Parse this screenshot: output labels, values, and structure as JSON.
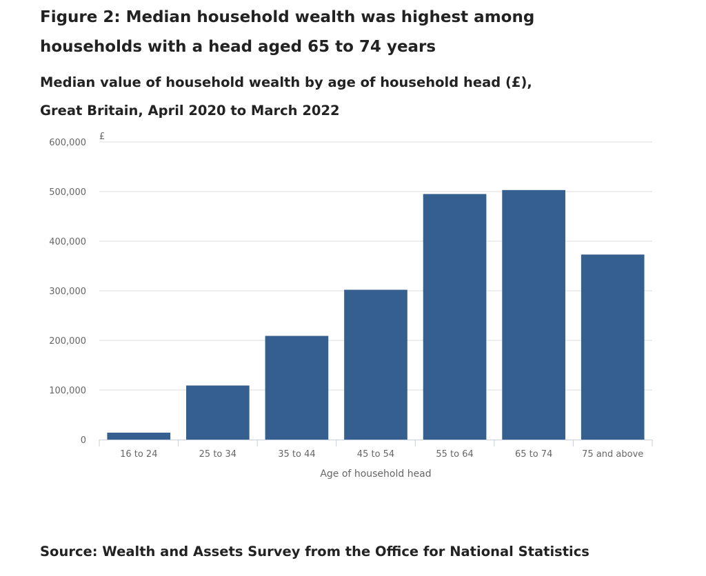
{
  "figure": {
    "title": "Figure 2: Median household wealth was highest among households with a head aged 65 to 74 years",
    "subtitle": "Median value of household wealth by age of household head (£), Great Britain, April 2020 to March 2022",
    "source": "Source: Wealth and Assets Survey from the Office for National Statistics"
  },
  "chart_data": {
    "type": "bar",
    "categories": [
      "16 to 24",
      "25 to 34",
      "35 to 44",
      "45 to 54",
      "55 to 64",
      "65 to 74",
      "75 and above"
    ],
    "series": [
      {
        "values": [
          14000,
          109000,
          209000,
          302000,
          495000,
          503000,
          373000
        ]
      }
    ],
    "xlabel": "Age of household head",
    "ylabel": "£",
    "ylim": [
      0,
      600000
    ],
    "yticks": [
      0,
      100000,
      200000,
      300000,
      400000,
      500000,
      600000
    ],
    "ytick_labels": [
      "0",
      "100,000",
      "200,000",
      "300,000",
      "400,000",
      "500,000",
      "600,000"
    ],
    "grid": true,
    "legend": "none",
    "bar_color": "#345f8f",
    "grid_color": "#dddddd",
    "axis_color": "#c8cfe0"
  }
}
